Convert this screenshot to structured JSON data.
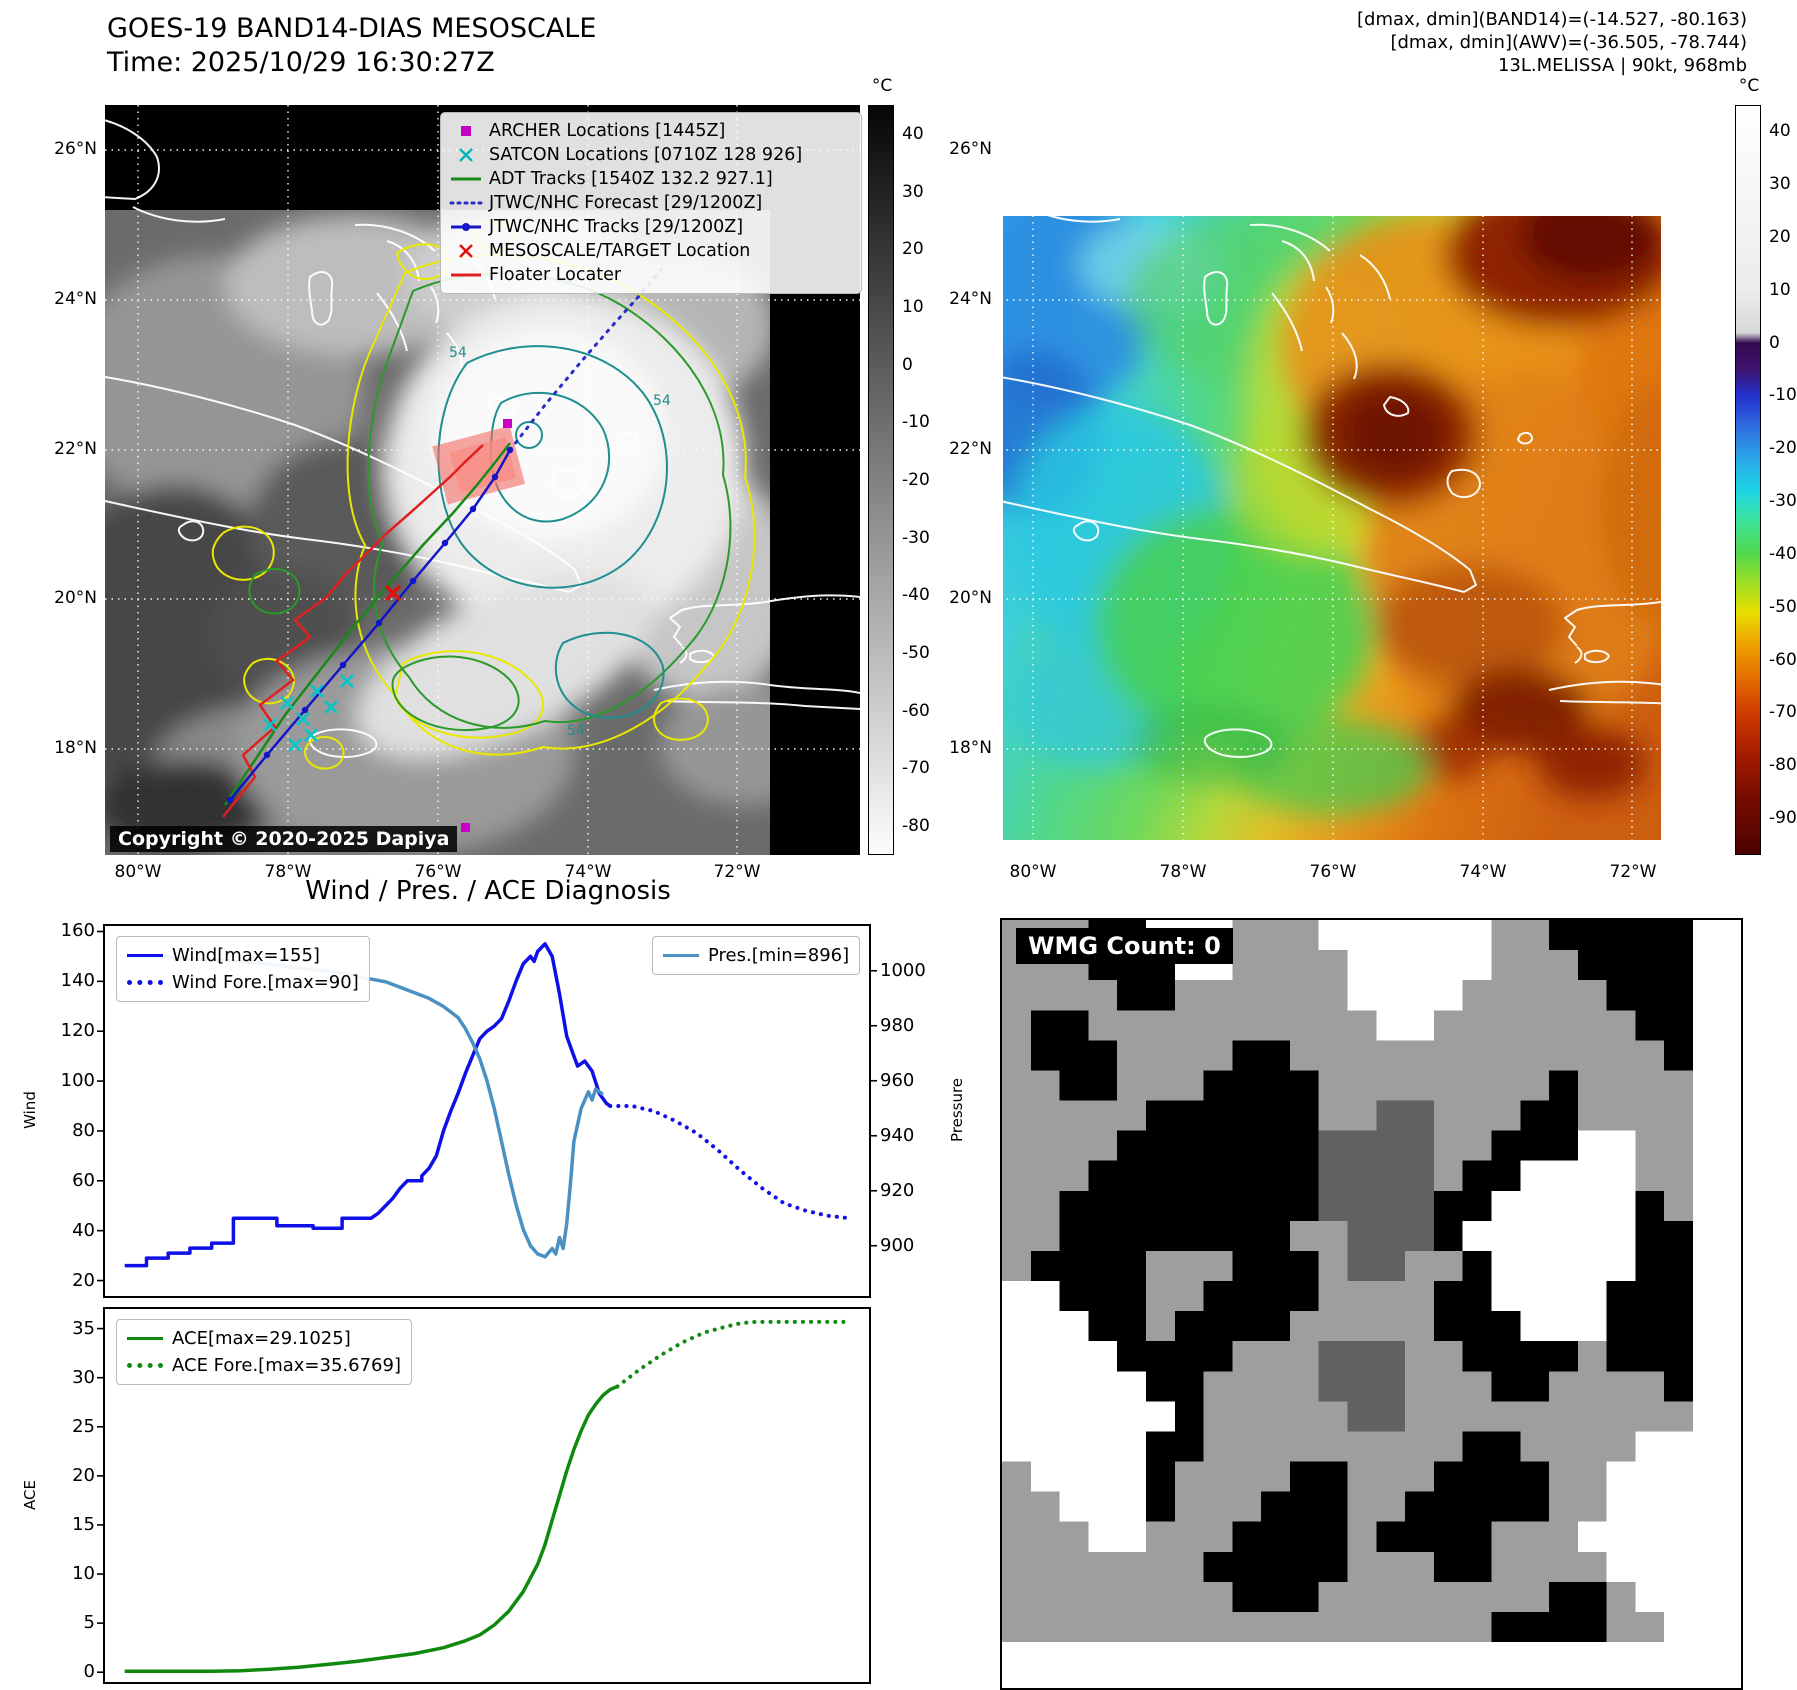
{
  "top_left": {
    "title_line1": "GOES-19 BAND14-DIAS MESOSCALE",
    "title_line2": "Time: 2025/10/29 16:30:27Z",
    "copyright": "Copyright © 2020-2025 Dapiya",
    "contour_label": "54",
    "legend": [
      {
        "marker": "square",
        "color": "#c400c4",
        "label": "ARCHER Locations [1445Z]"
      },
      {
        "marker": "x",
        "color": "#00b8b8",
        "label": "SATCON Locations [0710Z 128 926]"
      },
      {
        "marker": "line",
        "color": "#178a17",
        "label": "ADT Tracks [1540Z 132.2 927.1]"
      },
      {
        "marker": "dotted",
        "color": "#2c2cc8",
        "label": "JTWC/NHC Forecast [29/1200Z]"
      },
      {
        "marker": "line-dot",
        "color": "#1414c8",
        "label": "JTWC/NHC Tracks [29/1200Z]"
      },
      {
        "marker": "x",
        "color": "#e01010",
        "label": "MESOSCALE/TARGET Location"
      },
      {
        "marker": "line",
        "color": "#e02020",
        "label": "Floater Locater"
      }
    ],
    "colorbar": {
      "unit": "°C",
      "ticks": [
        40,
        30,
        20,
        10,
        0,
        -10,
        -20,
        -30,
        -40,
        -50,
        -60,
        -70,
        -80
      ]
    },
    "lat_labels": [
      "26°N",
      "24°N",
      "22°N",
      "20°N",
      "18°N"
    ],
    "lon_labels": [
      "80°W",
      "78°W",
      "76°W",
      "74°W",
      "72°W"
    ]
  },
  "top_right": {
    "header_line1": "[dmax, dmin](BAND14)=(-14.527, -80.163)",
    "header_line2": "[dmax, dmin](AWV)=(-36.505, -78.744)",
    "header_line3": "13L.MELISSA | 90kt, 968mb",
    "colorbar": {
      "unit": "°C",
      "ticks": [
        40,
        30,
        20,
        10,
        0,
        -10,
        -20,
        -30,
        -40,
        -50,
        -60,
        -70,
        -80,
        -90
      ]
    },
    "lat_labels": [
      "26°N",
      "24°N",
      "22°N",
      "20°N",
      "18°N"
    ],
    "lon_labels": [
      "80°W",
      "78°W",
      "76°W",
      "74°W",
      "72°W"
    ]
  },
  "bottom_left": {
    "title": "Wind / Pres. / ACE Diagnosis"
  },
  "chart_data": [
    {
      "type": "line",
      "panel": "wind_pressure",
      "ylabel_left": "Wind",
      "ylabel_right": "Pressure",
      "xlim": [
        -3,
        103
      ],
      "ylim_left": [
        13,
        163
      ],
      "ylim_right": [
        881,
        1017
      ],
      "yticks_left": [
        20,
        40,
        60,
        80,
        100,
        120,
        140,
        160
      ],
      "yticks_right": [
        900,
        920,
        940,
        960,
        980,
        1000
      ],
      "series": [
        {
          "name": "Wind[max=155]",
          "axis": "left",
          "style": "solid",
          "color": "#0f0fe8",
          "points": [
            [
              0,
              26
            ],
            [
              3,
              26
            ],
            [
              3,
              29
            ],
            [
              6,
              29
            ],
            [
              6,
              31
            ],
            [
              9,
              31
            ],
            [
              9,
              33
            ],
            [
              12,
              33
            ],
            [
              12,
              35
            ],
            [
              15,
              35
            ],
            [
              15,
              45
            ],
            [
              21,
              45
            ],
            [
              21,
              42
            ],
            [
              26,
              42
            ],
            [
              26,
              41
            ],
            [
              30,
              41
            ],
            [
              30,
              45
            ],
            [
              34,
              45
            ],
            [
              35,
              47
            ],
            [
              36,
              50
            ],
            [
              37,
              53
            ],
            [
              38,
              57
            ],
            [
              39,
              60
            ],
            [
              41,
              60
            ],
            [
              41,
              62
            ],
            [
              42,
              65
            ],
            [
              43,
              70
            ],
            [
              44,
              80
            ],
            [
              45,
              88
            ],
            [
              46,
              95
            ],
            [
              47,
              103
            ],
            [
              48,
              110
            ],
            [
              49,
              117
            ],
            [
              50,
              120
            ],
            [
              51,
              122
            ],
            [
              52,
              125
            ],
            [
              53,
              132
            ],
            [
              54,
              140
            ],
            [
              55,
              147
            ],
            [
              56,
              150
            ],
            [
              56.5,
              148
            ],
            [
              57,
              152
            ],
            [
              58,
              155
            ],
            [
              59,
              150
            ],
            [
              60,
              135
            ],
            [
              61,
              118
            ],
            [
              62,
              110
            ],
            [
              62.5,
              106
            ],
            [
              63.5,
              108
            ],
            [
              64.5,
              104
            ],
            [
              65.5,
              95
            ],
            [
              66.5,
              91
            ],
            [
              67,
              90
            ]
          ]
        },
        {
          "name": "Wind Fore.[max=90]",
          "axis": "left",
          "style": "dotted",
          "color": "#0f0fe8",
          "points": [
            [
              67,
              90
            ],
            [
              70,
              90
            ],
            [
              73,
              88
            ],
            [
              76,
              84
            ],
            [
              79,
              79
            ],
            [
              82,
              72
            ],
            [
              85,
              64
            ],
            [
              88,
              57
            ],
            [
              91,
              51
            ],
            [
              94,
              48
            ],
            [
              97,
              46
            ],
            [
              100,
              45
            ]
          ]
        },
        {
          "name": "Pres.[min=896]",
          "axis": "right",
          "style": "solid",
          "color": "#4a90c2",
          "points": [
            [
              0,
              1005
            ],
            [
              6,
              1005
            ],
            [
              12,
              1004
            ],
            [
              18,
              1003
            ],
            [
              24,
              1001
            ],
            [
              28,
              1000
            ],
            [
              32,
              998
            ],
            [
              36,
              996
            ],
            [
              39,
              993
            ],
            [
              42,
              990
            ],
            [
              44,
              987
            ],
            [
              46,
              983
            ],
            [
              47,
              979
            ],
            [
              48,
              974
            ],
            [
              49,
              968
            ],
            [
              50,
              960
            ],
            [
              51,
              950
            ],
            [
              52,
              938
            ],
            [
              53,
              926
            ],
            [
              54,
              915
            ],
            [
              55,
              906
            ],
            [
              56,
              900
            ],
            [
              57,
              897
            ],
            [
              58,
              896
            ],
            [
              59,
              899
            ],
            [
              59.5,
              897
            ],
            [
              60,
              903
            ],
            [
              60.5,
              899
            ],
            [
              61,
              908
            ],
            [
              61.5,
              922
            ],
            [
              62,
              938
            ],
            [
              63,
              950
            ],
            [
              64,
              956
            ],
            [
              64.5,
              953
            ],
            [
              65,
              957
            ],
            [
              66,
              955
            ]
          ]
        }
      ]
    },
    {
      "type": "line",
      "panel": "ace",
      "ylabel_left": "ACE",
      "xlim": [
        -3,
        103
      ],
      "ylim_left": [
        -1.2,
        37.2
      ],
      "yticks_left": [
        0,
        5,
        10,
        15,
        20,
        25,
        30,
        35
      ],
      "series": [
        {
          "name": "ACE[max=29.1025]",
          "axis": "left",
          "style": "solid",
          "color": "#0f8a0f",
          "points": [
            [
              0,
              0.1
            ],
            [
              12,
              0.1
            ],
            [
              16,
              0.15
            ],
            [
              20,
              0.3
            ],
            [
              24,
              0.5
            ],
            [
              28,
              0.8
            ],
            [
              32,
              1.1
            ],
            [
              36,
              1.5
            ],
            [
              40,
              1.9
            ],
            [
              44,
              2.5
            ],
            [
              47,
              3.2
            ],
            [
              49,
              3.8
            ],
            [
              51,
              4.8
            ],
            [
              53,
              6.2
            ],
            [
              55,
              8.2
            ],
            [
              57,
              11
            ],
            [
              58,
              13
            ],
            [
              59,
              15.5
            ],
            [
              60,
              18
            ],
            [
              61,
              20.5
            ],
            [
              62,
              22.7
            ],
            [
              63,
              24.6
            ],
            [
              64,
              26.2
            ],
            [
              65,
              27.3
            ],
            [
              66,
              28.2
            ],
            [
              67,
              28.8
            ],
            [
              68,
              29.1
            ]
          ]
        },
        {
          "name": "ACE Fore.[max=35.6769]",
          "axis": "left",
          "style": "dotted",
          "color": "#0f8a0f",
          "points": [
            [
              68,
              29.1
            ],
            [
              71,
              30.8
            ],
            [
              74,
              32.3
            ],
            [
              77,
              33.6
            ],
            [
              80,
              34.6
            ],
            [
              83,
              35.2
            ],
            [
              85,
              35.55
            ],
            [
              87,
              35.68
            ],
            [
              90,
              35.68
            ],
            [
              93,
              35.68
            ],
            [
              96,
              35.68
            ],
            [
              100,
              35.68
            ]
          ]
        }
      ]
    }
  ],
  "wmg": {
    "label": "WMG Count: 0",
    "palette": {
      "#": "#000000",
      "g": "#9e9e9e",
      "d": "#616161",
      "w": "#ffffff"
    },
    "grid": [
      "ggg##wwwgggwwwwwwgg#####",
      "ggg###wwggggwwwwwggg####",
      "gggg##ggggggwwwwggggg###",
      "g##ggggggggggwwggggggg##",
      "g###gggg##ggggggggggggg#",
      "gg##ggg####gggggggg#gggg",
      "ggggg######ggddggg##gggg",
      "gggg#######ddddgg###wwgg",
      "ggg########ddddg##wwwwgg",
      "gg#########dddd##wwwww#g",
      "gg########ggddd#wwwwww##",
      "g####ggg###gddgg#wwwww##",
      "ww###gg####gggg##wwww###",
      "www##g####ggggg###www###",
      "wwww####gggdddgg####g###",
      "wwwww##ggggdddggg##gggg#",
      "wwwwww#gggggddgggggggggg",
      "wwwww##ggggggggg##ggggww",
      "gwwww#gggg##ggg####ggwww",
      "ggwww#ggg###gg#####ggwww",
      "gggwwggg####g####gggwwww",
      "ggggggg#####ggg##ggggwww",
      "gggggggg###gggggggg##gww",
      "ggggggggggggggggg####ggw"
    ]
  }
}
